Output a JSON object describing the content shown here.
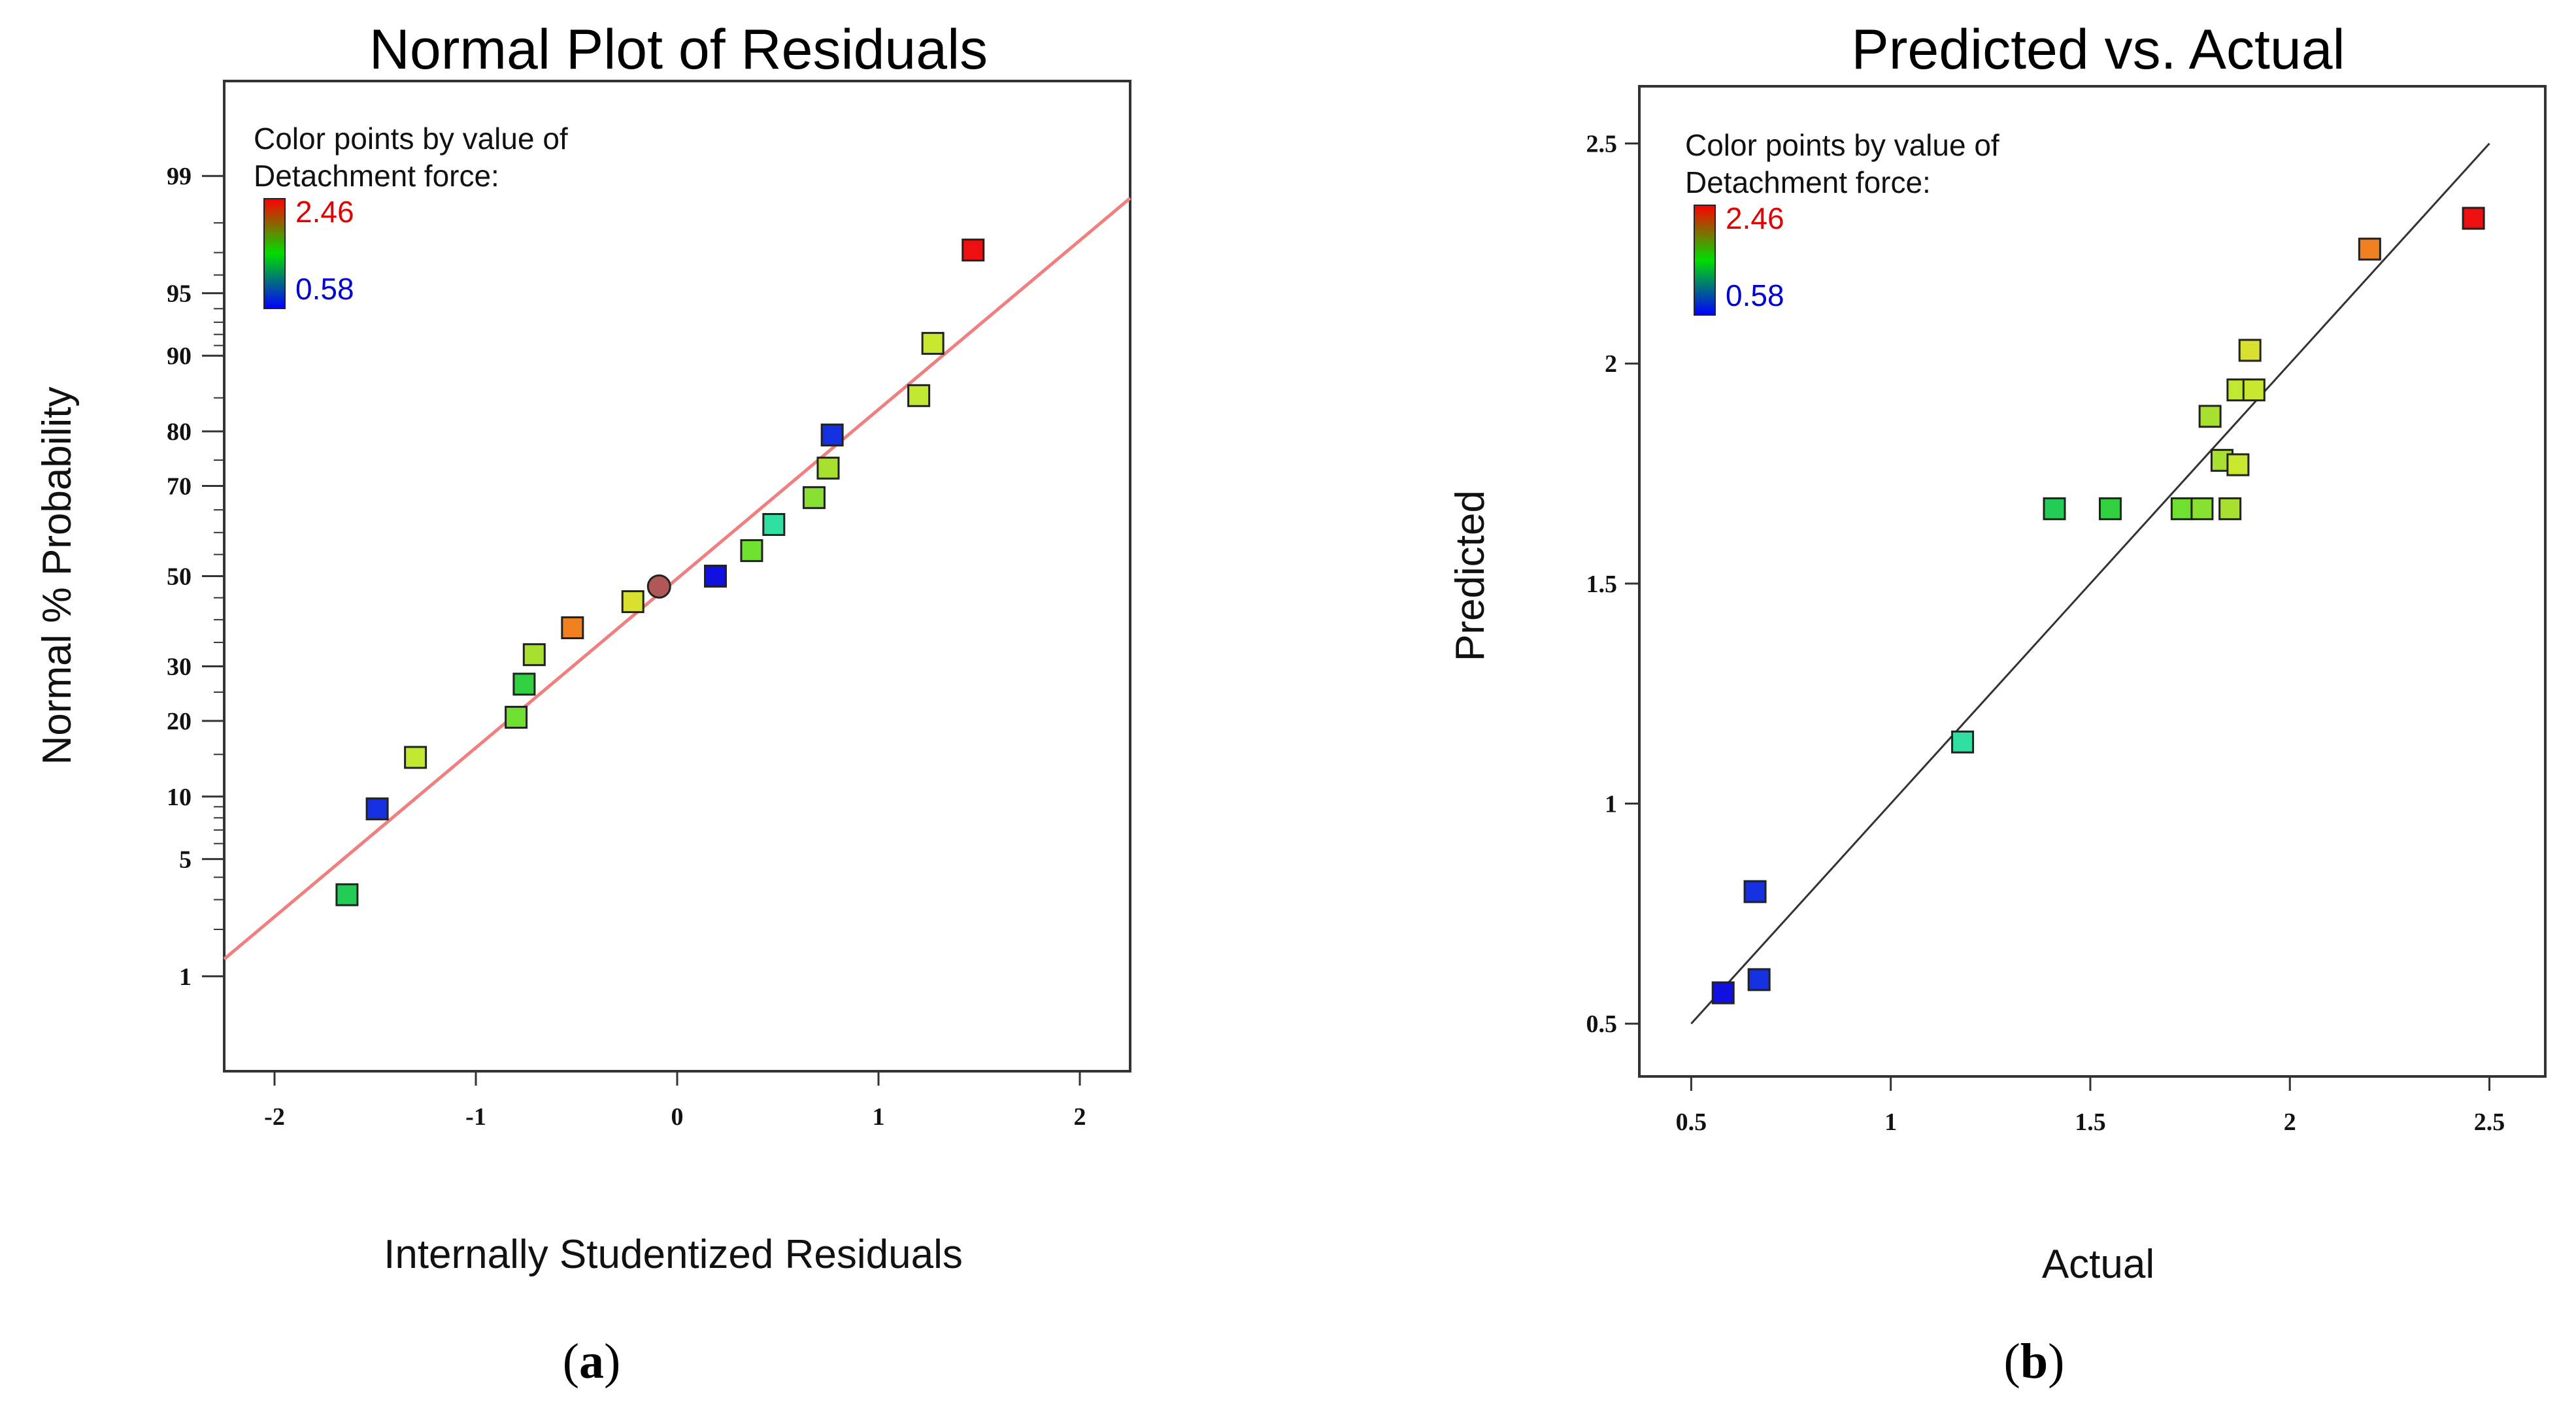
{
  "colors": {
    "fit_line_a": "#f08080",
    "fit_line_b": "#333333",
    "frame": "#333333",
    "marker_stroke": "#222222",
    "legend_top": "#ff0000",
    "legend_mid": "#00dd00",
    "legend_bottom": "#0000ff"
  },
  "chart_data": [
    {
      "id": "a",
      "type": "scatter",
      "title": "Normal Plot of Residuals",
      "xlabel": "Internally Studentized Residuals",
      "ylabel": "Normal % Probability",
      "xlim": [
        -2.25,
        2.25
      ],
      "y_scale": "normal-probability",
      "ylim_probability": [
        0.2,
        99.8
      ],
      "x_ticks": [
        -2,
        -1,
        0,
        1,
        2
      ],
      "x_tick_labels": [
        "-2",
        "-1",
        "0",
        "1",
        "2"
      ],
      "y_ticks": [
        1,
        5,
        10,
        20,
        30,
        50,
        70,
        80,
        90,
        95,
        99
      ],
      "y_tick_labels": [
        "1",
        "5",
        "10",
        "20",
        "30",
        "50",
        "70",
        "80",
        "90",
        "95",
        "99"
      ],
      "legend": {
        "line1": "Color points by value of",
        "line2": "Detachment force:",
        "max_label": "2.46",
        "min_label": "0.58"
      },
      "fit_line": [
        [
          -2.25,
          1.3
        ],
        [
          2.25,
          98.6
        ]
      ],
      "points": [
        {
          "x": -1.64,
          "y": 3.2,
          "color": "#22cc55",
          "shape": "square"
        },
        {
          "x": -1.49,
          "y": 8.8,
          "color": "#1530e0",
          "shape": "square"
        },
        {
          "x": -1.3,
          "y": 14.6,
          "color": "#c0e830",
          "shape": "square"
        },
        {
          "x": -0.8,
          "y": 20.6,
          "color": "#70e030",
          "shape": "square"
        },
        {
          "x": -0.76,
          "y": 26.5,
          "color": "#30d040",
          "shape": "square"
        },
        {
          "x": -0.71,
          "y": 32.4,
          "color": "#a8e030",
          "shape": "square"
        },
        {
          "x": -0.52,
          "y": 38.2,
          "color": "#f08020",
          "shape": "square"
        },
        {
          "x": -0.22,
          "y": 44.1,
          "color": "#d8e030",
          "shape": "square"
        },
        {
          "x": -0.09,
          "y": 47.6,
          "color": "#b05858",
          "shape": "circle"
        },
        {
          "x": 0.19,
          "y": 50.0,
          "color": "#1010e0",
          "shape": "square"
        },
        {
          "x": 0.37,
          "y": 55.9,
          "color": "#70e030",
          "shape": "square"
        },
        {
          "x": 0.48,
          "y": 61.8,
          "color": "#30e0a0",
          "shape": "square"
        },
        {
          "x": 0.68,
          "y": 67.6,
          "color": "#88e030",
          "shape": "square"
        },
        {
          "x": 0.75,
          "y": 73.5,
          "color": "#a8e030",
          "shape": "square"
        },
        {
          "x": 0.77,
          "y": 79.4,
          "color": "#1530e0",
          "shape": "square"
        },
        {
          "x": 1.2,
          "y": 85.3,
          "color": "#c0e830",
          "shape": "square"
        },
        {
          "x": 1.27,
          "y": 91.2,
          "color": "#c8e830",
          "shape": "square"
        },
        {
          "x": 1.47,
          "y": 97.1,
          "color": "#ee1010",
          "shape": "square"
        }
      ]
    },
    {
      "id": "b",
      "type": "scatter",
      "title": "Predicted vs. Actual",
      "xlabel": "Actual",
      "ylabel": "Predicted",
      "xlim": [
        0.37,
        2.64
      ],
      "ylim": [
        0.38,
        2.63
      ],
      "x_ticks": [
        0.5,
        1,
        1.5,
        2,
        2.5
      ],
      "x_tick_labels": [
        "0.5",
        "1",
        "1.5",
        "2",
        "2.5"
      ],
      "y_ticks": [
        0.5,
        1,
        1.5,
        2,
        2.5
      ],
      "y_tick_labels": [
        "0.5",
        "1",
        "1.5",
        "2",
        "2.5"
      ],
      "legend": {
        "line1": "Color points by value of",
        "line2": "Detachment force:",
        "max_label": "2.46",
        "min_label": "0.58"
      },
      "fit_line": [
        [
          0.5,
          0.5
        ],
        [
          2.5,
          2.5
        ]
      ],
      "points": [
        {
          "x": 0.58,
          "y": 0.57,
          "color": "#1010e0",
          "shape": "square"
        },
        {
          "x": 0.66,
          "y": 0.8,
          "color": "#1530e0",
          "shape": "square"
        },
        {
          "x": 0.67,
          "y": 0.6,
          "color": "#1530e0",
          "shape": "square"
        },
        {
          "x": 1.18,
          "y": 1.14,
          "color": "#30e0a0",
          "shape": "square"
        },
        {
          "x": 1.41,
          "y": 1.67,
          "color": "#22cc55",
          "shape": "square"
        },
        {
          "x": 1.55,
          "y": 1.67,
          "color": "#30d040",
          "shape": "square"
        },
        {
          "x": 1.73,
          "y": 1.67,
          "color": "#70e030",
          "shape": "square"
        },
        {
          "x": 1.78,
          "y": 1.67,
          "color": "#88e030",
          "shape": "square"
        },
        {
          "x": 1.8,
          "y": 1.88,
          "color": "#a8e030",
          "shape": "square"
        },
        {
          "x": 1.83,
          "y": 1.78,
          "color": "#a8e030",
          "shape": "square"
        },
        {
          "x": 1.85,
          "y": 1.67,
          "color": "#a8e030",
          "shape": "square"
        },
        {
          "x": 1.87,
          "y": 1.94,
          "color": "#c0e830",
          "shape": "square"
        },
        {
          "x": 1.87,
          "y": 1.77,
          "color": "#c8e830",
          "shape": "square"
        },
        {
          "x": 1.9,
          "y": 2.03,
          "color": "#d8e030",
          "shape": "square"
        },
        {
          "x": 1.91,
          "y": 1.94,
          "color": "#c8e830",
          "shape": "square"
        },
        {
          "x": 2.2,
          "y": 2.26,
          "color": "#f08020",
          "shape": "square"
        },
        {
          "x": 2.46,
          "y": 2.33,
          "color": "#ee1010",
          "shape": "square"
        }
      ]
    }
  ],
  "panel_labels": {
    "a": {
      "open": "(",
      "letter": "a",
      "close": ")"
    },
    "b": {
      "open": "(",
      "letter": "b",
      "close": ")"
    }
  }
}
